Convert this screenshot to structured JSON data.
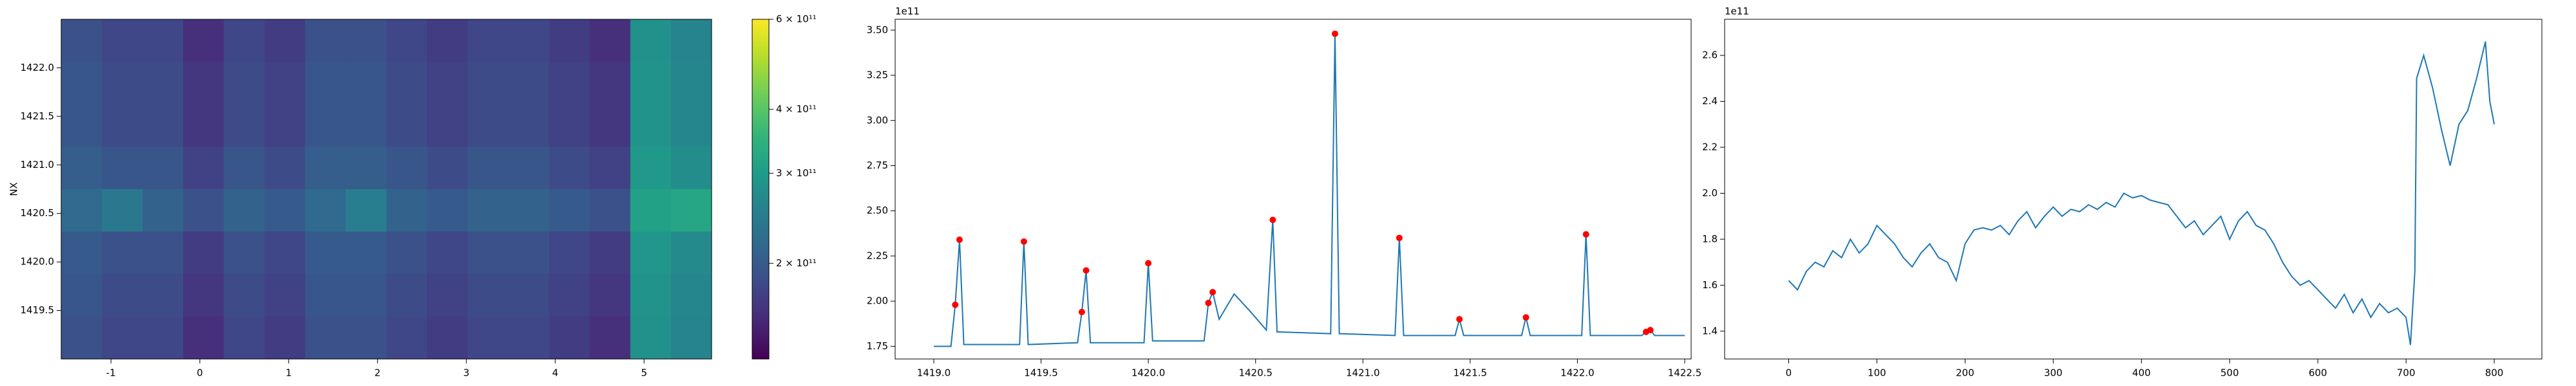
{
  "chart_data": [
    {
      "type": "heatmap",
      "ylabel": "NX",
      "colormap": "viridis",
      "colorbar_scale": "log",
      "xlim": [
        -1.56,
        5.76
      ],
      "ylim": [
        1419.0,
        1422.5
      ],
      "xticks": [
        -1,
        0,
        1,
        2,
        3,
        4,
        5
      ],
      "yticks": [
        1419.5,
        {
          "value": 1420.0,
          "label": "1420.0"
        },
        1420.5,
        {
          "value": 1421.0,
          "label": "1421.0"
        },
        1421.5,
        {
          "value": 1422.0,
          "label": "1422.0"
        }
      ],
      "clim": [
        130000000000.0,
        600000000000.0
      ],
      "cticks": [
        {
          "value": 200000000000.0,
          "label": "2 × 10¹¹"
        },
        {
          "value": 300000000000.0,
          "label": "3 × 10¹¹"
        },
        {
          "value": 400000000000.0,
          "label": "4 × 10¹¹"
        },
        {
          "value": 600000000000.0,
          "label": "6 × 10¹¹"
        }
      ],
      "z": [
        [
          190000000000.0,
          180000000000.0,
          180000000000.0,
          160000000000.0,
          180000000000.0,
          170000000000.0,
          190000000000.0,
          190000000000.0,
          180000000000.0,
          170000000000.0,
          180000000000.0,
          180000000000.0,
          170000000000.0,
          160000000000.0,
          280000000000.0,
          260000000000.0
        ],
        [
          195000000000.0,
          185000000000.0,
          185000000000.0,
          165000000000.0,
          185000000000.0,
          175000000000.0,
          195000000000.0,
          195000000000.0,
          185000000000.0,
          175000000000.0,
          185000000000.0,
          185000000000.0,
          175000000000.0,
          165000000000.0,
          285000000000.0,
          265000000000.0
        ],
        [
          195000000000.0,
          185000000000.0,
          185000000000.0,
          165000000000.0,
          185000000000.0,
          175000000000.0,
          195000000000.0,
          195000000000.0,
          185000000000.0,
          175000000000.0,
          185000000000.0,
          185000000000.0,
          175000000000.0,
          165000000000.0,
          285000000000.0,
          265000000000.0
        ],
        [
          205000000000.0,
          195000000000.0,
          195000000000.0,
          175000000000.0,
          195000000000.0,
          185000000000.0,
          205000000000.0,
          205000000000.0,
          195000000000.0,
          185000000000.0,
          195000000000.0,
          195000000000.0,
          185000000000.0,
          175000000000.0,
          295000000000.0,
          275000000000.0
        ],
        [
          220000000000.0,
          240000000000.0,
          210000000000.0,
          190000000000.0,
          210000000000.0,
          200000000000.0,
          220000000000.0,
          250000000000.0,
          210000000000.0,
          200000000000.0,
          210000000000.0,
          210000000000.0,
          200000000000.0,
          190000000000.0,
          310000000000.0,
          320000000000.0
        ],
        [
          200000000000.0,
          190000000000.0,
          190000000000.0,
          170000000000.0,
          190000000000.0,
          180000000000.0,
          200000000000.0,
          200000000000.0,
          190000000000.0,
          180000000000.0,
          190000000000.0,
          190000000000.0,
          180000000000.0,
          170000000000.0,
          290000000000.0,
          270000000000.0
        ],
        [
          195000000000.0,
          185000000000.0,
          185000000000.0,
          165000000000.0,
          185000000000.0,
          175000000000.0,
          195000000000.0,
          195000000000.0,
          185000000000.0,
          175000000000.0,
          185000000000.0,
          185000000000.0,
          175000000000.0,
          165000000000.0,
          285000000000.0,
          265000000000.0
        ],
        [
          190000000000.0,
          180000000000.0,
          180000000000.0,
          160000000000.0,
          180000000000.0,
          170000000000.0,
          190000000000.0,
          190000000000.0,
          180000000000.0,
          170000000000.0,
          180000000000.0,
          180000000000.0,
          170000000000.0,
          160000000000.0,
          280000000000.0,
          260000000000.0
        ]
      ]
    },
    {
      "type": "line",
      "offset_label": "1e11",
      "xlim": [
        1418.82,
        1422.53
      ],
      "ylim": [
        1.68,
        3.56
      ],
      "xticks": [
        {
          "value": 1419.0,
          "label": "1419.0"
        },
        1419.5,
        {
          "value": 1420.0,
          "label": "1420.0"
        },
        1420.5,
        {
          "value": 1421.0,
          "label": "1421.0"
        },
        1421.5,
        {
          "value": 1422.0,
          "label": "1422.0"
        },
        1422.5
      ],
      "yticks": [
        1.75,
        {
          "value": 2.0,
          "label": "2.00"
        },
        2.25,
        {
          "value": 2.5,
          "label": "2.50"
        },
        2.75,
        {
          "value": 3.0,
          "label": "3.00"
        },
        3.25,
        {
          "value": 3.5,
          "label": "3.50"
        }
      ],
      "x": [
        1419.0,
        1419.08,
        1419.1,
        1419.12,
        1419.14,
        1419.4,
        1419.42,
        1419.44,
        1419.67,
        1419.69,
        1419.71,
        1419.73,
        1419.98,
        1420.0,
        1420.02,
        1420.26,
        1420.28,
        1420.3,
        1420.33,
        1420.4,
        1420.47,
        1420.55,
        1420.58,
        1420.6,
        1420.85,
        1420.87,
        1420.89,
        1421.15,
        1421.17,
        1421.19,
        1421.43,
        1421.45,
        1421.47,
        1421.74,
        1421.76,
        1421.78,
        1422.02,
        1422.04,
        1422.06,
        1422.3,
        1422.32,
        1422.34,
        1422.36,
        1422.5
      ],
      "series": [
        {
          "color": "#1f77b4",
          "values": [
            1.75,
            1.75,
            1.98,
            2.34,
            1.76,
            1.76,
            2.33,
            1.76,
            1.77,
            1.94,
            2.17,
            1.77,
            1.77,
            2.21,
            1.78,
            1.78,
            1.99,
            2.05,
            1.9,
            2.04,
            1.95,
            1.84,
            2.45,
            1.83,
            1.82,
            3.48,
            1.82,
            1.81,
            2.35,
            1.81,
            1.81,
            1.9,
            1.81,
            1.81,
            1.91,
            1.81,
            1.81,
            2.37,
            1.81,
            1.81,
            1.83,
            1.84,
            1.81,
            1.81
          ]
        }
      ],
      "markers": {
        "color": "#ff0000",
        "x": [
          1419.1,
          1419.12,
          1419.42,
          1419.69,
          1419.71,
          1420.0,
          1420.28,
          1420.3,
          1420.58,
          1420.87,
          1421.17,
          1421.45,
          1421.76,
          1422.04,
          1422.32,
          1422.34
        ],
        "values": [
          1.98,
          2.34,
          2.33,
          1.94,
          2.17,
          2.21,
          1.99,
          2.05,
          2.45,
          3.48,
          2.35,
          1.9,
          1.91,
          2.37,
          1.83,
          1.84
        ]
      }
    },
    {
      "type": "line",
      "offset_label": "1e11",
      "xlim": [
        -72.6,
        854
      ],
      "ylim": [
        1.279,
        2.757
      ],
      "xticks": [
        0,
        100,
        200,
        300,
        400,
        500,
        600,
        700,
        800
      ],
      "yticks": [
        1.4,
        1.6,
        1.8,
        {
          "value": 2.0,
          "label": "2.0"
        },
        2.2,
        2.4,
        2.6
      ],
      "x": [
        0,
        10,
        20,
        30,
        40,
        50,
        60,
        70,
        80,
        90,
        100,
        110,
        120,
        130,
        140,
        150,
        160,
        170,
        180,
        190,
        200,
        210,
        220,
        230,
        240,
        250,
        260,
        270,
        280,
        290,
        300,
        310,
        320,
        330,
        340,
        350,
        360,
        370,
        380,
        390,
        400,
        410,
        420,
        430,
        440,
        450,
        460,
        470,
        480,
        490,
        500,
        510,
        520,
        530,
        540,
        550,
        560,
        570,
        580,
        590,
        600,
        610,
        620,
        630,
        640,
        650,
        660,
        670,
        680,
        690,
        700,
        705,
        710,
        712,
        720,
        730,
        740,
        750,
        760,
        770,
        780,
        790,
        795,
        800
      ],
      "series": [
        {
          "color": "#1f77b4",
          "values": [
            1.62,
            1.58,
            1.66,
            1.7,
            1.68,
            1.75,
            1.72,
            1.8,
            1.74,
            1.78,
            1.86,
            1.82,
            1.78,
            1.72,
            1.68,
            1.74,
            1.78,
            1.72,
            1.7,
            1.62,
            1.78,
            1.84,
            1.85,
            1.84,
            1.86,
            1.82,
            1.88,
            1.92,
            1.85,
            1.9,
            1.94,
            1.9,
            1.93,
            1.92,
            1.95,
            1.93,
            1.96,
            1.94,
            2.0,
            1.98,
            1.99,
            1.97,
            1.96,
            1.95,
            1.9,
            1.85,
            1.88,
            1.82,
            1.86,
            1.9,
            1.8,
            1.88,
            1.92,
            1.86,
            1.84,
            1.78,
            1.7,
            1.64,
            1.6,
            1.62,
            1.58,
            1.54,
            1.5,
            1.56,
            1.48,
            1.54,
            1.46,
            1.52,
            1.48,
            1.5,
            1.46,
            1.34,
            1.66,
            2.5,
            2.6,
            2.46,
            2.28,
            2.12,
            2.3,
            2.36,
            2.5,
            2.66,
            2.4,
            2.3
          ]
        }
      ]
    }
  ]
}
